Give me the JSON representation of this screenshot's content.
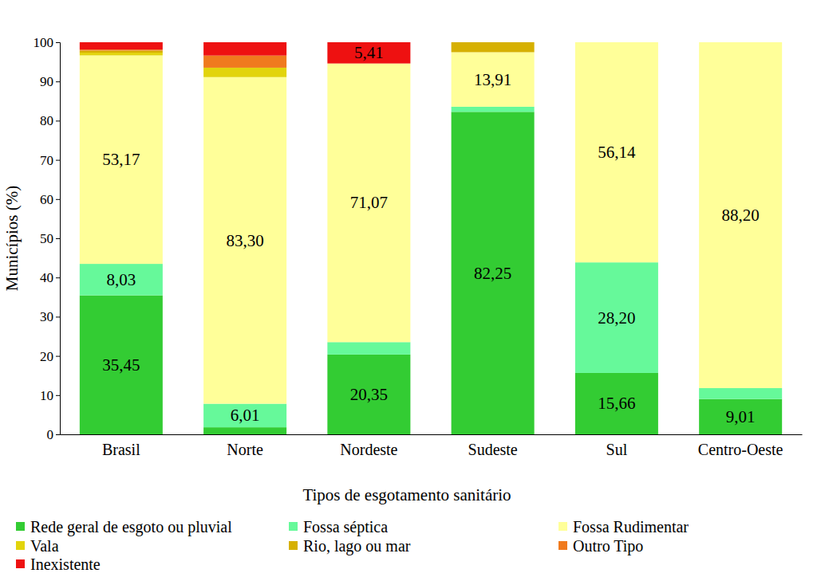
{
  "chart_data": {
    "type": "bar",
    "stacked": true,
    "data_labels": true,
    "legend": "bottom",
    "x_label": "Tipos de esgotamento sanitário",
    "y_label": "Municípios (%)",
    "categories": [
      "Brasil",
      "Norte",
      "Nordeste",
      "Sudeste",
      "Sul",
      "Centro-Oeste"
    ],
    "ylim": [
      0,
      100
    ],
    "yticks": [
      0,
      10,
      20,
      30,
      40,
      50,
      60,
      70,
      80,
      90,
      100
    ],
    "series": [
      {
        "name": "Rede geral de esgoto ou pluvial",
        "color": "#33cc33",
        "values": [
          35.45,
          1.8,
          20.35,
          82.25,
          15.66,
          9.01
        ],
        "value_labels": [
          "35,45",
          null,
          "20,35",
          "82,25",
          "15,66",
          "9,01"
        ]
      },
      {
        "name": "Fossa séptica",
        "color": "#66f99a",
        "values": [
          8.03,
          6.01,
          3.17,
          1.3,
          28.2,
          2.79
        ],
        "value_labels": [
          "8,03",
          "6,01",
          null,
          null,
          "28,20",
          null
        ]
      },
      {
        "name": "Fossa Rudimentar",
        "color": "#ffff99",
        "values": [
          53.17,
          83.3,
          71.07,
          13.91,
          56.14,
          88.2
        ],
        "value_labels": [
          "53,17",
          "83,30",
          "71,07",
          "13,91",
          "56,14",
          "88,20"
        ]
      },
      {
        "name": "Vala",
        "color": "#e2d40c",
        "values": [
          0.7,
          2.4,
          0,
          0,
          0,
          0
        ]
      },
      {
        "name": "Rio, lago ou mar",
        "color": "#d6b000",
        "values": [
          0.5,
          0,
          0,
          2.54,
          0,
          0
        ]
      },
      {
        "name": "Outro Tipo",
        "color": "#f07a1e",
        "values": [
          0.3,
          3.1,
          0,
          0,
          0,
          0
        ]
      },
      {
        "name": "Inexistente",
        "color": "#ee1111",
        "values": [
          1.85,
          3.39,
          5.41,
          0,
          0,
          0
        ],
        "value_labels": [
          null,
          null,
          "5,41",
          null,
          null,
          null
        ]
      }
    ]
  }
}
